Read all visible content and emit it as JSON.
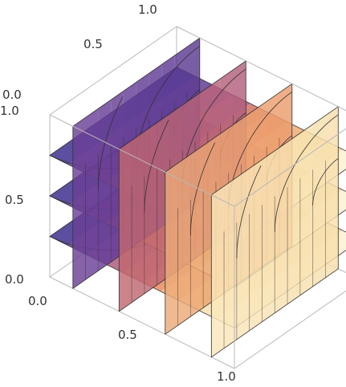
{
  "chart_data": {
    "type": "slice-contour-3d",
    "title": "",
    "x_ticks": [
      "0.0",
      "0.5",
      "1.0"
    ],
    "y_ticks": [
      "0.0",
      "0.5",
      "1.0"
    ],
    "z_ticks": [
      "0.0",
      "0.5",
      "1.0"
    ],
    "xlim": [
      0,
      1
    ],
    "ylim": [
      0,
      1
    ],
    "zlim": [
      0,
      1
    ],
    "x_slice_positions": [
      0.125,
      0.375,
      0.625,
      0.875
    ],
    "z_slice_positions": [
      0.25,
      0.5,
      0.75
    ],
    "contour_levels": [
      0.1,
      0.2,
      0.3,
      0.4,
      0.5,
      0.6,
      0.7,
      0.8,
      0.9
    ],
    "colormap": [
      "#2c2a8a",
      "#8a4a9c",
      "#e47a55",
      "#f4cf90",
      "#fffbe0"
    ],
    "boxed": true,
    "axis_color": "#b8b8b8"
  }
}
